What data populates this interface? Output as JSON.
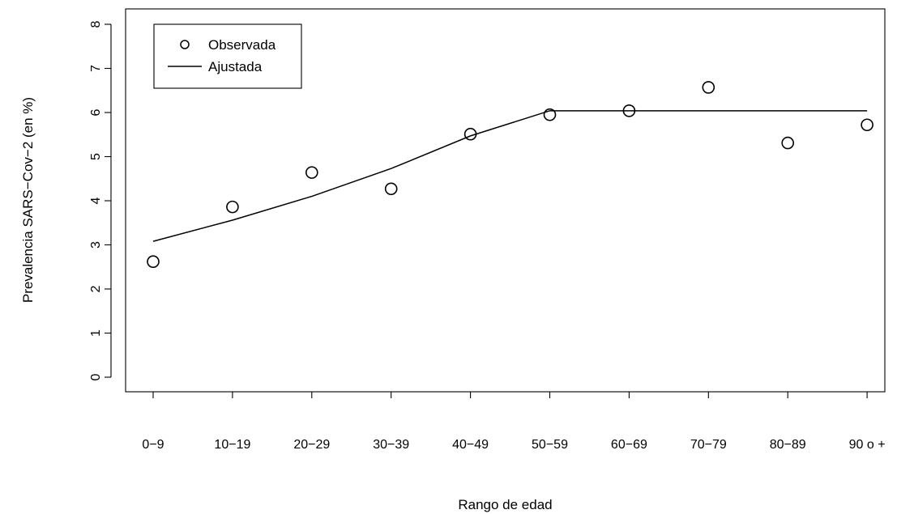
{
  "chart_data": {
    "type": "scatter",
    "xlabel": "Rango de edad",
    "ylabel": "Prevalencia SARS−Cov−2 (en %)",
    "categories": [
      "0−9",
      "10−19",
      "20−29",
      "30−39",
      "40−49",
      "50−59",
      "60−69",
      "70−79",
      "80−89",
      "90 o +"
    ],
    "ylim": [
      0,
      8
    ],
    "yticks": [
      "0",
      "1",
      "2",
      "3",
      "4",
      "5",
      "6",
      "7",
      "8"
    ],
    "grid": false,
    "legend_position": "top-left",
    "series": [
      {
        "name": "Observada",
        "kind": "points",
        "marker": "open-circle",
        "values": [
          2.62,
          3.86,
          4.64,
          4.27,
          5.51,
          5.95,
          6.04,
          6.57,
          5.31,
          5.72
        ]
      },
      {
        "name": "Ajustada",
        "kind": "line",
        "values": [
          3.08,
          3.56,
          4.1,
          4.73,
          5.47,
          6.04,
          6.04,
          6.04,
          6.04,
          6.04
        ]
      }
    ]
  }
}
